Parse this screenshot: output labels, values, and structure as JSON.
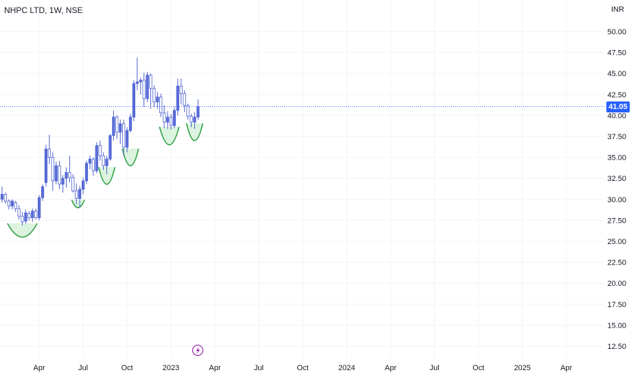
{
  "header": {
    "title": "NHPC LTD, 1W, NSE"
  },
  "axis": {
    "currency": "INR"
  },
  "last_price": {
    "label": "41.05",
    "value": 41.05
  },
  "colors": {
    "up": "#5b6fd9",
    "down": "#ffffff",
    "wick": "#4a5ed0",
    "grid": "#f0f3fa",
    "axis_text": "#131722",
    "price_tag_bg": "#2962ff",
    "pattern_stroke": "#2ea043",
    "pattern_fill": "#dcf3df",
    "flash_icon": "#9c27b0"
  },
  "icons": {
    "flash": "flash-icon"
  },
  "chart_data": {
    "type": "candlestick",
    "title": "NHPC LTD, 1W, NSE",
    "ylabel": "INR",
    "ylim": [
      11.5,
      52.5
    ],
    "y_ticks": [
      12.5,
      15,
      17.5,
      20,
      22.5,
      25,
      27.5,
      30,
      32.5,
      35,
      37.5,
      40,
      42.5,
      45,
      47.5,
      50
    ],
    "y_tick_labels": [
      "12.50",
      "15.00",
      "17.50",
      "20.00",
      "22.50",
      "25.00",
      "27.50",
      "30.00",
      "32.50",
      "35.00",
      "37.50",
      "40.00",
      "42.50",
      "45.00",
      "47.50",
      "50.00"
    ],
    "x_ticks": [
      "Apr",
      "Jul",
      "Oct",
      "2023",
      "Apr",
      "Jul",
      "Oct",
      "2024",
      "Apr",
      "Jul",
      "Oct",
      "2025",
      "Apr"
    ],
    "x_tick_bar_index": [
      11,
      24,
      37,
      50,
      63,
      76,
      89,
      102,
      115,
      128,
      141,
      154,
      167
    ],
    "grid": true,
    "series": [
      {
        "name": "NHPC",
        "ohlc": [
          [
            30.0,
            31.5,
            29.6,
            30.6
          ],
          [
            30.6,
            30.8,
            29.5,
            29.8
          ],
          [
            29.8,
            30.0,
            28.8,
            29.2
          ],
          [
            29.2,
            30.0,
            28.8,
            29.8
          ],
          [
            29.6,
            29.8,
            28.5,
            28.9
          ],
          [
            28.9,
            29.3,
            27.6,
            28.0
          ],
          [
            28.0,
            28.5,
            26.9,
            27.3
          ],
          [
            27.4,
            28.8,
            27.1,
            28.4
          ],
          [
            28.3,
            28.6,
            27.5,
            27.8
          ],
          [
            27.8,
            28.9,
            27.3,
            28.6
          ],
          [
            28.6,
            28.9,
            27.6,
            27.8
          ],
          [
            27.8,
            30.5,
            27.5,
            30.2
          ],
          [
            30.2,
            31.8,
            29.8,
            31.5
          ],
          [
            32.0,
            36.5,
            31.5,
            36.0
          ],
          [
            36.0,
            37.7,
            34.2,
            35.0
          ],
          [
            35.0,
            35.6,
            31.0,
            32.2
          ],
          [
            32.2,
            34.5,
            31.8,
            34.0
          ],
          [
            34.0,
            34.6,
            31.2,
            31.8
          ],
          [
            31.8,
            32.9,
            30.8,
            32.5
          ],
          [
            32.5,
            33.8,
            31.4,
            33.2
          ],
          [
            33.2,
            35.2,
            32.0,
            32.6
          ],
          [
            32.6,
            33.0,
            30.8,
            31.0
          ],
          [
            31.0,
            31.9,
            29.4,
            30.1
          ],
          [
            30.1,
            31.6,
            29.0,
            31.2
          ],
          [
            31.2,
            32.6,
            30.6,
            32.2
          ],
          [
            32.2,
            34.6,
            31.8,
            34.3
          ],
          [
            34.3,
            35.2,
            33.6,
            34.8
          ],
          [
            34.8,
            35.0,
            32.8,
            33.4
          ],
          [
            33.4,
            36.8,
            33.1,
            36.4
          ],
          [
            36.4,
            37.0,
            34.6,
            35.2
          ],
          [
            35.2,
            35.6,
            33.5,
            34.0
          ],
          [
            34.0,
            35.2,
            33.0,
            34.8
          ],
          [
            34.8,
            37.8,
            34.6,
            37.6
          ],
          [
            37.6,
            40.6,
            37.0,
            39.8
          ],
          [
            39.8,
            40.0,
            37.2,
            38.0
          ],
          [
            38.0,
            39.5,
            36.6,
            39.0
          ],
          [
            39.0,
            39.5,
            35.2,
            36.2
          ],
          [
            36.2,
            38.6,
            35.6,
            38.2
          ],
          [
            38.2,
            40.2,
            38.0,
            39.8
          ],
          [
            39.8,
            44.2,
            39.3,
            43.8
          ],
          [
            43.8,
            46.9,
            43.0,
            44.0
          ],
          [
            44.0,
            44.5,
            42.5,
            44.2
          ],
          [
            44.2,
            45.1,
            41.0,
            42.0
          ],
          [
            42.0,
            45.2,
            41.6,
            44.8
          ],
          [
            44.8,
            45.0,
            40.8,
            43.2
          ],
          [
            43.2,
            43.6,
            41.0,
            41.6
          ],
          [
            41.6,
            42.8,
            40.8,
            42.2
          ],
          [
            42.2,
            42.6,
            39.8,
            40.3
          ],
          [
            40.3,
            41.2,
            38.5,
            39.2
          ],
          [
            39.2,
            40.5,
            38.4,
            39.8
          ],
          [
            39.8,
            40.2,
            38.3,
            38.8
          ],
          [
            38.8,
            41.0,
            38.5,
            40.6
          ],
          [
            40.6,
            44.4,
            40.0,
            43.5
          ],
          [
            43.5,
            44.4,
            41.3,
            42.6
          ],
          [
            42.6,
            43.0,
            40.4,
            41.2
          ],
          [
            41.2,
            41.4,
            39.5,
            39.9
          ],
          [
            39.9,
            40.2,
            38.6,
            39.2
          ],
          [
            39.2,
            40.4,
            38.4,
            39.8
          ],
          [
            39.8,
            41.9,
            39.5,
            41.05
          ]
        ]
      }
    ],
    "patterns": [
      {
        "type": "rounded-bottom",
        "from_bar": 2,
        "to_bar": 10,
        "low": 25.5
      },
      {
        "type": "rounded-bottom",
        "from_bar": 21,
        "to_bar": 24,
        "low": 29.0
      },
      {
        "type": "rounded-bottom",
        "from_bar": 29,
        "to_bar": 33,
        "low": 31.8
      },
      {
        "type": "rounded-bottom",
        "from_bar": 36,
        "to_bar": 40,
        "low": 34.0
      },
      {
        "type": "rounded-bottom",
        "from_bar": 47,
        "to_bar": 52,
        "low": 36.5
      },
      {
        "type": "rounded-bottom",
        "from_bar": 55,
        "to_bar": 59,
        "low": 37.0
      }
    ],
    "last_price_line": 41.05
  }
}
